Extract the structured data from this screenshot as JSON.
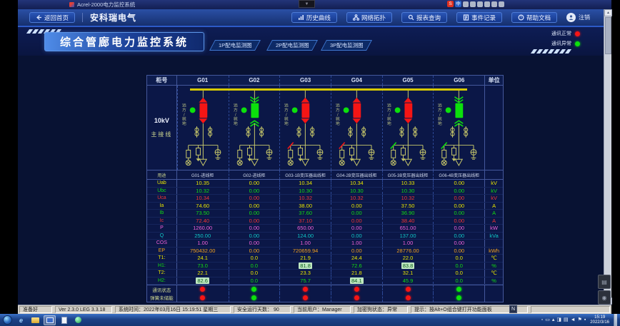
{
  "window": {
    "title": "Acrel-2000电力监控系统",
    "app_icon": "acrel-app-icon"
  },
  "titlebar_tray": {
    "ime_icons": [
      "sogou-icon",
      "chinese-input-icon",
      "punctuation-icon",
      "emoji-icon",
      "mic-icon",
      "keyboard-icon",
      "toolbox-icon",
      "settings-icon"
    ]
  },
  "topnav": {
    "home_button": "返回首页",
    "home_icon": "back-arrow-icon",
    "brand": "安科瑞电气",
    "buttons": [
      "历史曲线",
      "网络拓扑",
      "报表查询",
      "事件记录",
      "帮助文档"
    ],
    "button_icons": [
      "history-curve-icon",
      "network-topology-icon",
      "report-search-icon",
      "event-record-icon",
      "help-doc-icon"
    ],
    "logout": "注销"
  },
  "banner": {
    "title": "综合管廊电力监控系统",
    "tabs": [
      "1P配电监测图",
      "2P配电监测图",
      "3P配电监测图"
    ],
    "legend": [
      {
        "label": "通讯正常",
        "color": "#f51515"
      },
      {
        "label": "通讯异常",
        "color": "#0ce00c"
      }
    ]
  },
  "diagram": {
    "header_label": "柜号",
    "unit_label": "单位",
    "columns": [
      "G01",
      "G02",
      "G03",
      "G04",
      "G05",
      "G06"
    ],
    "side_label_1": "10kV",
    "side_label_2": "主接线",
    "remote_local_label": "远方/就地",
    "breaker_states": [
      "closed",
      "open",
      "closed",
      "closed",
      "closed",
      "open"
    ],
    "branch_marks": [
      "none",
      "none",
      "red",
      "red",
      "green",
      "green"
    ],
    "purpose_label": "用途",
    "purposes": [
      "G01-进线柜",
      "G02-进线柜",
      "G03-1B变压器出线柜",
      "G04-2B变压器出线柜",
      "G05-3B变压器出线柜",
      "G06-4B变压器出线柜"
    ],
    "rows": [
      {
        "label": "Uab",
        "unit": "kV",
        "color": "#e8e400",
        "values": [
          "10.35",
          "0.00",
          "10.34",
          "10.34",
          "10.33",
          "0.00"
        ]
      },
      {
        "label": "Ubc",
        "unit": "kV",
        "color": "#12dd12",
        "values": [
          "10.32",
          "0.00",
          "10.30",
          "10.30",
          "10.30",
          "0.00"
        ]
      },
      {
        "label": "Uca",
        "unit": "kV",
        "color": "#f23535",
        "values": [
          "10.34",
          "0.00",
          "10.32",
          "10.32",
          "10.32",
          "0.00"
        ]
      },
      {
        "label": "Ia",
        "unit": "A",
        "color": "#e8e400",
        "values": [
          "74.60",
          "0.00",
          "38.00",
          "0.00",
          "37.50",
          "0.00"
        ]
      },
      {
        "label": "Ib",
        "unit": "A",
        "color": "#12dd12",
        "values": [
          "73.50",
          "0.00",
          "37.60",
          "0.00",
          "36.90",
          "0.00"
        ]
      },
      {
        "label": "Ic",
        "unit": "A",
        "color": "#f23535",
        "values": [
          "72.40",
          "0.00",
          "37.10",
          "0.00",
          "38.40",
          "0.00"
        ]
      },
      {
        "label": "P",
        "unit": "kW",
        "color": "#f060d8",
        "values": [
          "1260.00",
          "0.00",
          "650.00",
          "0.00",
          "651.00",
          "0.00"
        ]
      },
      {
        "label": "Q",
        "unit": "kVa",
        "color": "#10c8c8",
        "values": [
          "250.00",
          "0.00",
          "124.00",
          "0.00",
          "137.00",
          "0.00"
        ]
      },
      {
        "label": "COS",
        "unit": "",
        "color": "#f060d8",
        "values": [
          "1.00",
          "0.00",
          "1.00",
          "1.00",
          "1.00",
          "0.00"
        ]
      },
      {
        "label": "EP",
        "unit": "kWh",
        "color": "#f0a020",
        "values": [
          "750432.00",
          "0.00",
          "720659.94",
          "0.00",
          "28776.00",
          "0.00"
        ]
      },
      {
        "label": "T1:",
        "unit": "℃",
        "color": "#e8e400",
        "values": [
          "24.1",
          "0.0",
          "21.9",
          "24.4",
          "22.0",
          "0.0"
        ]
      },
      {
        "label": "H1:",
        "unit": "%",
        "color": "#12dd12",
        "values": [
          "73.0",
          "0.0",
          "81.8",
          "72.6",
          "83.8",
          "0.0"
        ],
        "highlights": [
          2,
          4
        ]
      },
      {
        "label": "T2:",
        "unit": "℃",
        "color": "#e8e400",
        "values": [
          "22.1",
          "0.0",
          "23.3",
          "21.8",
          "32.1",
          "0.0"
        ]
      },
      {
        "label": "H2:",
        "unit": "%",
        "color": "#12dd12",
        "values": [
          "82.6",
          "0.0",
          "75.7",
          "84.1",
          "45.9",
          "0.0"
        ],
        "highlights": [
          0,
          3
        ]
      }
    ],
    "status_rows": [
      {
        "label": "通讯状态",
        "dots": [
          "red",
          "green",
          "red",
          "red",
          "red",
          "green"
        ]
      },
      {
        "label": "弹簧未储能",
        "dots": [
          "red",
          "green",
          "red",
          "red",
          "red",
          "green"
        ]
      }
    ],
    "dot_colors": {
      "red": "#f51515",
      "green": "#0ce00c"
    },
    "busbar_color": "#d6c900"
  },
  "statusbar": {
    "cells": [
      "准备好",
      "Ver 2.3.0 LEG 3.3.18",
      "系统时间：2022年03月16日 15:19:51 星期三",
      "安全运行天数： 90",
      "当前用户：Manager",
      "加密狗状态：异常",
      "提示：按Alt+O组合键打开功能面板"
    ],
    "ime_badge": "N"
  },
  "taskbar": {
    "start_icon": "windows-start-orb",
    "icons": [
      "browser-icon",
      "folder-icon",
      "app-window-icon",
      "document-icon",
      "media-icon"
    ],
    "tray_icons": [
      "message-tray-icon",
      "printer-tray-icon",
      "shield-tray-icon",
      "update-tray-icon",
      "network-tray-icon",
      "volume-tray-icon",
      "flag-tray-icon",
      "usb-tray-icon"
    ],
    "time": "15:19",
    "date": "2022/3/16"
  }
}
